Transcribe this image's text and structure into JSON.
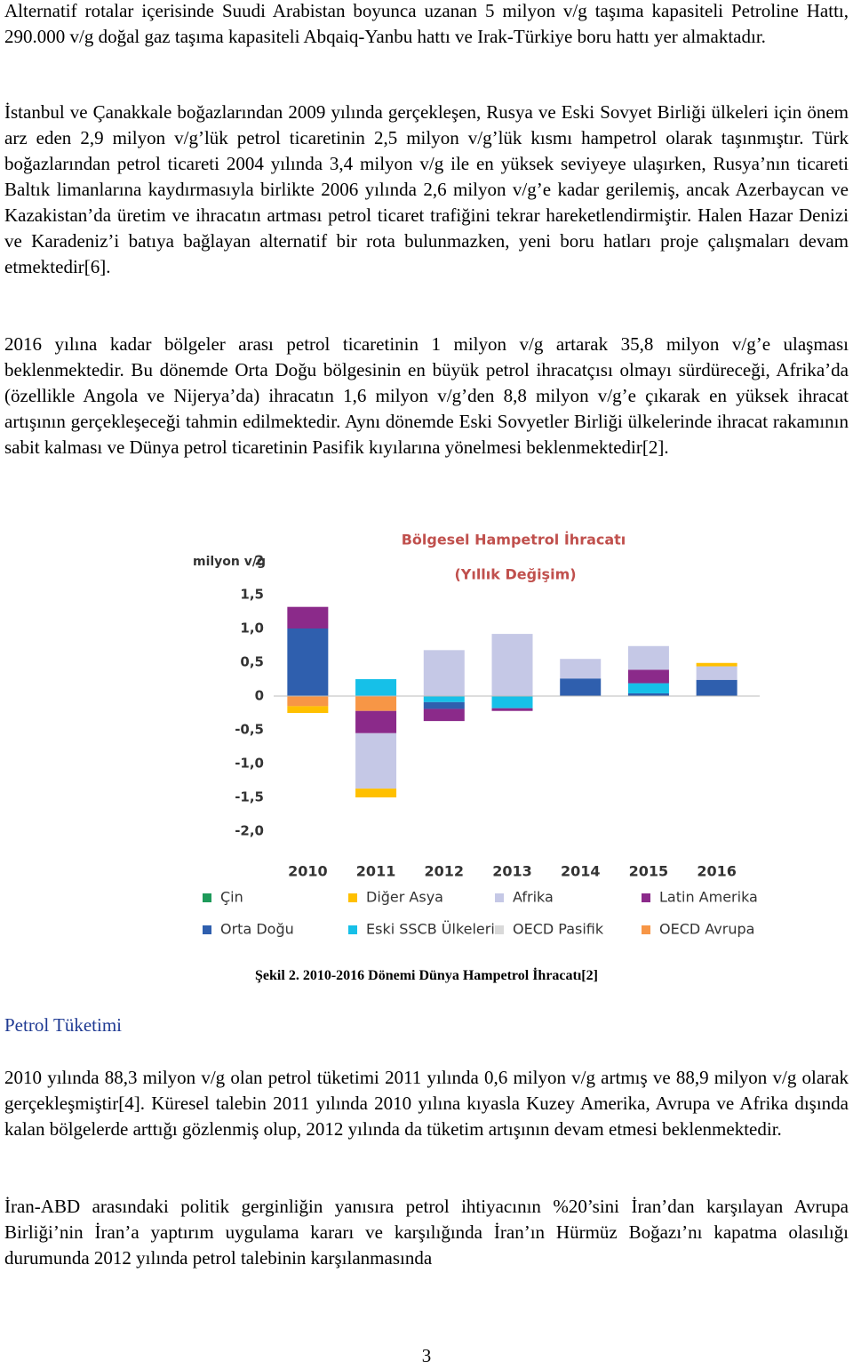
{
  "paragraphs": [
    "Alternatif rotalar içerisinde Suudi Arabistan boyunca uzanan 5 milyon v/g taşıma kapasiteli Petroline Hattı,  290.000 v/g doğal gaz taşıma kapasiteli Abqaiq-Yanbu hattı ve Irak-Türkiye boru hattı yer almaktadır.",
    "İstanbul ve Çanakkale boğazlarından 2009 yılında gerçekleşen, Rusya ve Eski Sovyet Birliği ülkeleri için önem arz eden 2,9 milyon v/g’lük petrol ticaretinin 2,5 milyon v/g’lük kısmı hampetrol olarak taşınmıştır. Türk boğazlarından petrol ticareti 2004 yılında 3,4 milyon v/g ile en yüksek seviyeye ulaşırken, Rusya’nın ticareti Baltık limanlarına kaydırmasıyla birlikte 2006 yılında 2,6 milyon v/g’e kadar gerilemiş, ancak Azerbaycan ve Kazakistan’da üretim ve ihracatın artması petrol ticaret trafiğini tekrar hareketlendirmiştir. Halen Hazar Denizi ve Karadeniz’i batıya bağlayan alternatif bir rota bulunmazken, yeni boru hatları proje çalışmaları devam etmektedir[6].",
    "2016 yılına kadar bölgeler arası petrol ticaretinin 1 milyon v/g artarak 35,8 milyon v/g’e ulaşması beklenmektedir. Bu dönemde Orta Doğu bölgesinin en büyük petrol ihracatçısı olmayı sürdüreceği, Afrika’da (özellikle Angola ve Nijerya’da) ihracatın 1,6 milyon v/g’den 8,8 milyon v/g’e çıkarak en yüksek ihracat artışının gerçekleşeceği tahmin edilmektedir. Aynı dönemde Eski Sovyetler Birliği ülkelerinde ihracat rakamının sabit kalması ve Dünya petrol ticaretinin Pasifik kıyılarına yönelmesi beklenmektedir[2]."
  ],
  "chart_data": {
    "type": "stacked_bar",
    "title": "Bölgesel Hampetrol İhracatı",
    "subtitle": "(Yıllık Değişim)",
    "y_label": "milyon v/g",
    "categories": [
      "2010",
      "2011",
      "2012",
      "2013",
      "2014",
      "2015",
      "2016"
    ],
    "ylim": [
      -2,
      2
    ],
    "yticks": [
      2,
      {
        "value": 1.5,
        "label": "1,5"
      },
      {
        "value": 1,
        "label": "1,0"
      },
      {
        "value": 0.5,
        "label": "0,5"
      },
      0,
      {
        "value": -0.5,
        "label": "-0,5"
      },
      {
        "value": -1,
        "label": "-1,0"
      },
      {
        "value": -1.5,
        "label": "-1,5"
      },
      {
        "value": -2,
        "label": "-2,0"
      }
    ],
    "grid": false,
    "series": [
      {
        "name": "Çin",
        "color": "#1e9a5a",
        "values": [
          0,
          0,
          0,
          0,
          0,
          0,
          0
        ]
      },
      {
        "name": "Diğer Asya",
        "color": "#ffc000",
        "values": [
          -0.1,
          -0.13,
          0,
          0,
          0,
          0,
          0.05
        ]
      },
      {
        "name": "Afrika",
        "color": "#c5c8e6",
        "values": [
          0,
          -0.82,
          0.68,
          0.92,
          0.29,
          0.35,
          0.2
        ]
      },
      {
        "name": "Latin Amerika",
        "color": "#8b2a8a",
        "values": [
          0.32,
          -0.33,
          -0.18,
          -0.04,
          0,
          0.2,
          0
        ]
      },
      {
        "name": "Orta Doğu",
        "color": "#2f5fae",
        "values": [
          1.0,
          0,
          -0.1,
          0,
          0.26,
          0.04,
          0.24
        ]
      },
      {
        "name": "Eski SSCB Ülkeleri",
        "color": "#16c0e8",
        "values": [
          0,
          0.25,
          -0.09,
          -0.18,
          0,
          0.15,
          0
        ]
      },
      {
        "name": "OECD Pasifik",
        "color": "#d9d9d9",
        "values": [
          0,
          0,
          0,
          0,
          0,
          0,
          0
        ]
      },
      {
        "name": "OECD Avrupa",
        "color": "#f79646",
        "values": [
          -0.15,
          -0.22,
          0,
          0,
          0,
          0,
          0
        ]
      }
    ]
  },
  "caption": "Şekil 2. 2010-2016 Dönemi Dünya Hampetrol İhracatı[2]",
  "section_heading": "Petrol Tüketimi",
  "section_paragraphs": [
    "2010 yılında 88,3 milyon v/g olan petrol tüketimi 2011 yılında 0,6 milyon v/g artmış ve 88,9 milyon v/g olarak gerçekleşmiştir[4]. Küresel talebin 2011 yılında 2010 yılına kıyasla Kuzey Amerika, Avrupa ve Afrika dışında kalan bölgelerde arttığı gözlenmiş olup, 2012 yılında da tüketim artışının devam etmesi beklenmektedir.",
    "İran-ABD arasındaki politik gerginliğin yanısıra petrol ihtiyacının %20’sini İran’dan karşılayan Avrupa Birliği’nin İran’a yaptırım uygulama kararı ve karşılığında İran’ın Hürmüz Boğazı’nı kapatma olasılığı durumunda 2012 yılında petrol talebinin karşılanmasında"
  ],
  "page_number": "3"
}
